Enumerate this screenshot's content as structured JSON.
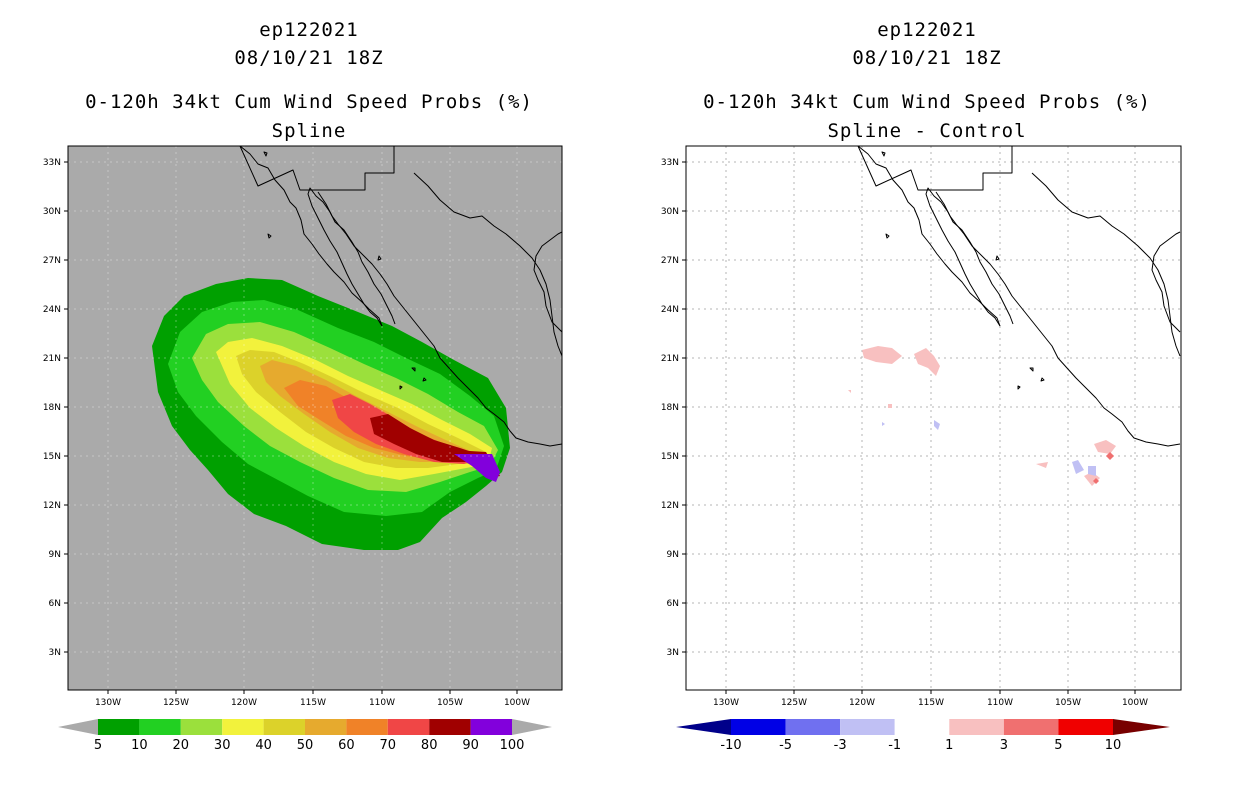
{
  "panels": [
    {
      "id": "left",
      "title_line1": "ep122021",
      "title_line2": "08/10/21 18Z",
      "title_line3": "0-120h 34kt Cum Wind Speed Probs (%)",
      "title_line4": "Spline",
      "lat_labels": [
        "33N",
        "30N",
        "27N",
        "24N",
        "21N",
        "18N",
        "15N",
        "12N",
        "9N",
        "6N",
        "3N"
      ],
      "lon_labels": [
        "130W",
        "125W",
        "120W",
        "115W",
        "110W",
        "105W",
        "100W"
      ],
      "background_color": "#aaaaaa",
      "colorbar": {
        "labels": [
          "5",
          "10",
          "20",
          "30",
          "40",
          "50",
          "60",
          "70",
          "80",
          "90",
          "100"
        ],
        "colors": [
          "#00a000",
          "#22d022",
          "#9be03c",
          "#f2f23c",
          "#dcd22a",
          "#e6aa2e",
          "#f08228",
          "#f04646",
          "#a00000",
          "#8200dc"
        ],
        "end_color": "#aaaaaa"
      }
    },
    {
      "id": "right",
      "title_line1": "ep122021",
      "title_line2": "08/10/21 18Z",
      "title_line3": "0-120h 34kt Cum Wind Speed Probs (%)",
      "title_line4": "Spline - Control",
      "lat_labels": [
        "33N",
        "30N",
        "27N",
        "24N",
        "21N",
        "18N",
        "15N",
        "12N",
        "9N",
        "6N",
        "3N"
      ],
      "lon_labels": [
        "130W",
        "125W",
        "120W",
        "115W",
        "110W",
        "105W",
        "100W"
      ],
      "background_color": "#ffffff",
      "colorbar": {
        "labels": [
          "-10",
          "-5",
          "-3",
          "-1",
          "1",
          "3",
          "5",
          "10"
        ],
        "colors": [
          "#0000e6",
          "#7070f0",
          "#c0c0f4",
          "#ffffff",
          "#f8c0c0",
          "#f07070",
          "#f00000"
        ],
        "end_left_color": "#00008a",
        "end_right_color": "#780000"
      }
    }
  ],
  "colors": {
    "coast": "#000000",
    "grid": "#b4b4b4",
    "frame": "#000000"
  }
}
